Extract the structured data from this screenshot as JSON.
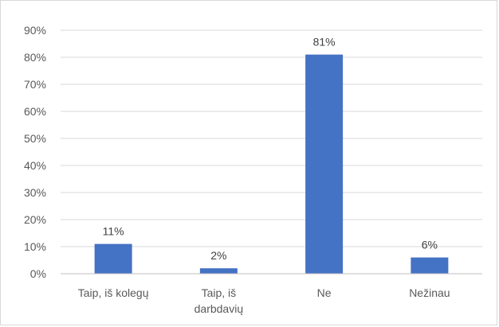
{
  "chart_data": {
    "type": "bar",
    "categories": [
      [
        "Taip, iš kolegų"
      ],
      [
        "Taip, iš",
        "darbdavių"
      ],
      [
        "Ne"
      ],
      [
        "Nežinau"
      ]
    ],
    "values": [
      11,
      2,
      81,
      6
    ],
    "data_labels": [
      "11%",
      "2%",
      "81%",
      "6%"
    ],
    "ylim": [
      0,
      90
    ],
    "yticks": [
      0,
      10,
      20,
      30,
      40,
      50,
      60,
      70,
      80,
      90
    ],
    "ytick_labels": [
      "0%",
      "10%",
      "20%",
      "30%",
      "40%",
      "50%",
      "60%",
      "70%",
      "80%",
      "90%"
    ],
    "grid": true,
    "legend": "none",
    "colors": {
      "bar": "#4472c4",
      "grid": "#d9d9d9",
      "axis": "#bfbfbf"
    }
  }
}
